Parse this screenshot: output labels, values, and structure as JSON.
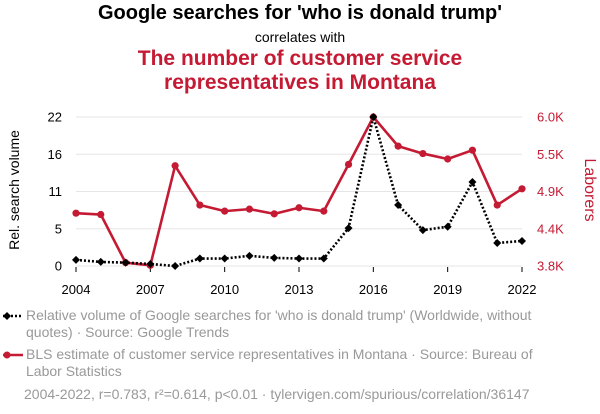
{
  "title": "Google searches for 'who is donald trump'",
  "subtitle": "correlates with",
  "title2_line1": "The number of customer service",
  "title2_line2": "representatives in Montana",
  "legend": {
    "series1": "Relative volume of Google searches for 'who is donald trump' (Worldwide, without quotes) · Source: Google Trends",
    "series2": "BLS estimate of customer service representatives in Montana · Source: Bureau of Labor Statistics"
  },
  "footer": "2004-2022, r=0.783, r²=0.614, p<0.01 · tylervigen.com/spurious/correlation/36147",
  "colors": {
    "series1": "#000000",
    "series2": "#c41a33",
    "grid": "#e6e6e6",
    "legend_text": "#999999"
  },
  "chart_data": {
    "type": "line",
    "title": "Google searches for 'who is donald trump'",
    "x": [
      2004,
      2005,
      2006,
      2007,
      2008,
      2009,
      2010,
      2011,
      2012,
      2013,
      2014,
      2015,
      2016,
      2017,
      2018,
      2019,
      2020,
      2021,
      2022
    ],
    "xlabel": "",
    "xticks": [
      "2004",
      "2007",
      "2010",
      "2013",
      "2016",
      "2019",
      "2022"
    ],
    "series": [
      {
        "name": "Relative volume of Google searches for 'who is donald trump'",
        "axis": "left",
        "style": "dotted",
        "marker": "diamond",
        "values": [
          0.9,
          0.6,
          0.5,
          0.3,
          0.0,
          1.1,
          1.1,
          1.5,
          1.2,
          1.1,
          1.1,
          5.6,
          22.0,
          9.0,
          5.3,
          5.8,
          12.4,
          3.4,
          3.7
        ]
      },
      {
        "name": "BLS estimate of customer service representatives in Montana",
        "axis": "right",
        "style": "solid",
        "marker": "circle",
        "values": [
          4580,
          4560,
          3850,
          3810,
          5280,
          4700,
          4610,
          4640,
          4570,
          4660,
          4610,
          5300,
          6000,
          5570,
          5460,
          5380,
          5510,
          4700,
          4940
        ]
      }
    ],
    "ylabel_left": "Rel. search volume",
    "ylim_left": [
      0,
      22
    ],
    "yticks_left": [
      "0",
      "5",
      "11",
      "16",
      "22"
    ],
    "ylabel_right": "Laborers",
    "ylim_right": [
      3800,
      6000
    ],
    "yticks_right": [
      "3.8K",
      "4.4K",
      "4.9K",
      "5.5K",
      "6.0K"
    ],
    "grid": true
  }
}
